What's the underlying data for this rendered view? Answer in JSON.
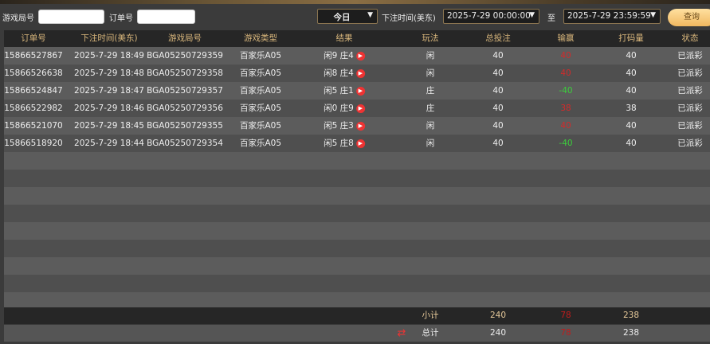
{
  "filters": {
    "round_label": "游戏局号",
    "round_value": "",
    "order_label": "订单号",
    "order_value": "",
    "period": "今日",
    "time_label": "下注时间(美东)",
    "start": "2025-7-29 00:00:00",
    "to_label": "至",
    "end": "2025-7-29 23:59:59",
    "query": "查询"
  },
  "columns": [
    "订单号",
    "下注时间(美东)",
    "游戏局号",
    "游戏类型",
    "结果",
    "玩法",
    "总投注",
    "输赢",
    "打码量",
    "状态"
  ],
  "rows": [
    {
      "order": "15866527867",
      "time": "2025-7-29 18:49",
      "round": "BGA05250729359",
      "game": "百家乐A05",
      "result": "闲9 庄4",
      "play": "闲",
      "bet": "40",
      "win": "40",
      "win_color": "red",
      "valid": "40",
      "status": "已派彩"
    },
    {
      "order": "15866526638",
      "time": "2025-7-29 18:48",
      "round": "BGA05250729358",
      "game": "百家乐A05",
      "result": "闲8 庄4",
      "play": "闲",
      "bet": "40",
      "win": "40",
      "win_color": "red",
      "valid": "40",
      "status": "已派彩"
    },
    {
      "order": "15866524847",
      "time": "2025-7-29 18:47",
      "round": "BGA05250729357",
      "game": "百家乐A05",
      "result": "闲5 庄1",
      "play": "庄",
      "bet": "40",
      "win": "-40",
      "win_color": "green",
      "valid": "40",
      "status": "已派彩"
    },
    {
      "order": "15866522982",
      "time": "2025-7-29 18:46",
      "round": "BGA05250729356",
      "game": "百家乐A05",
      "result": "闲0 庄9",
      "play": "庄",
      "bet": "40",
      "win": "38",
      "win_color": "red",
      "valid": "38",
      "status": "已派彩"
    },
    {
      "order": "15866521070",
      "time": "2025-7-29 18:45",
      "round": "BGA05250729355",
      "game": "百家乐A05",
      "result": "闲5 庄3",
      "play": "闲",
      "bet": "40",
      "win": "40",
      "win_color": "red",
      "valid": "40",
      "status": "已派彩"
    },
    {
      "order": "15866518920",
      "time": "2025-7-29 18:44",
      "round": "BGA05250729354",
      "game": "百家乐A05",
      "result": "闲5 庄8",
      "play": "闲",
      "bet": "40",
      "win": "-40",
      "win_color": "green",
      "valid": "40",
      "status": "已派彩"
    }
  ],
  "subtotal": {
    "label": "小计",
    "bet": "240",
    "win": "78",
    "valid": "238"
  },
  "total": {
    "label": "总计",
    "bet": "240",
    "win": "78",
    "valid": "238"
  }
}
